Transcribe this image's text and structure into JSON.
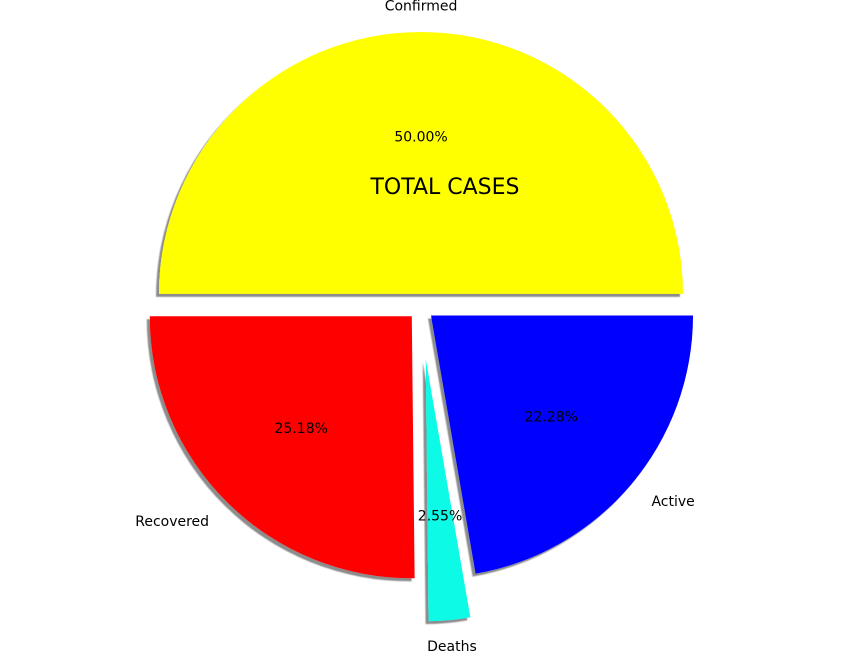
{
  "chart_data": {
    "type": "pie",
    "title": "TOTAL CASES",
    "labels": [
      "Confirmed",
      "Recovered",
      "Deaths",
      "Active"
    ],
    "values": [
      50.0,
      25.18,
      2.55,
      22.28
    ],
    "percent_labels": [
      "50.00%",
      "25.18%",
      "2.55%",
      "22.28%"
    ],
    "colors": [
      "#ffff00",
      "#ff0000",
      "#0bfbe6",
      "#0000ff"
    ],
    "explode": [
      0.05,
      0.05,
      0.2,
      0.05
    ],
    "start_angle": 0,
    "direction": "counterclockwise",
    "shadow": true
  }
}
